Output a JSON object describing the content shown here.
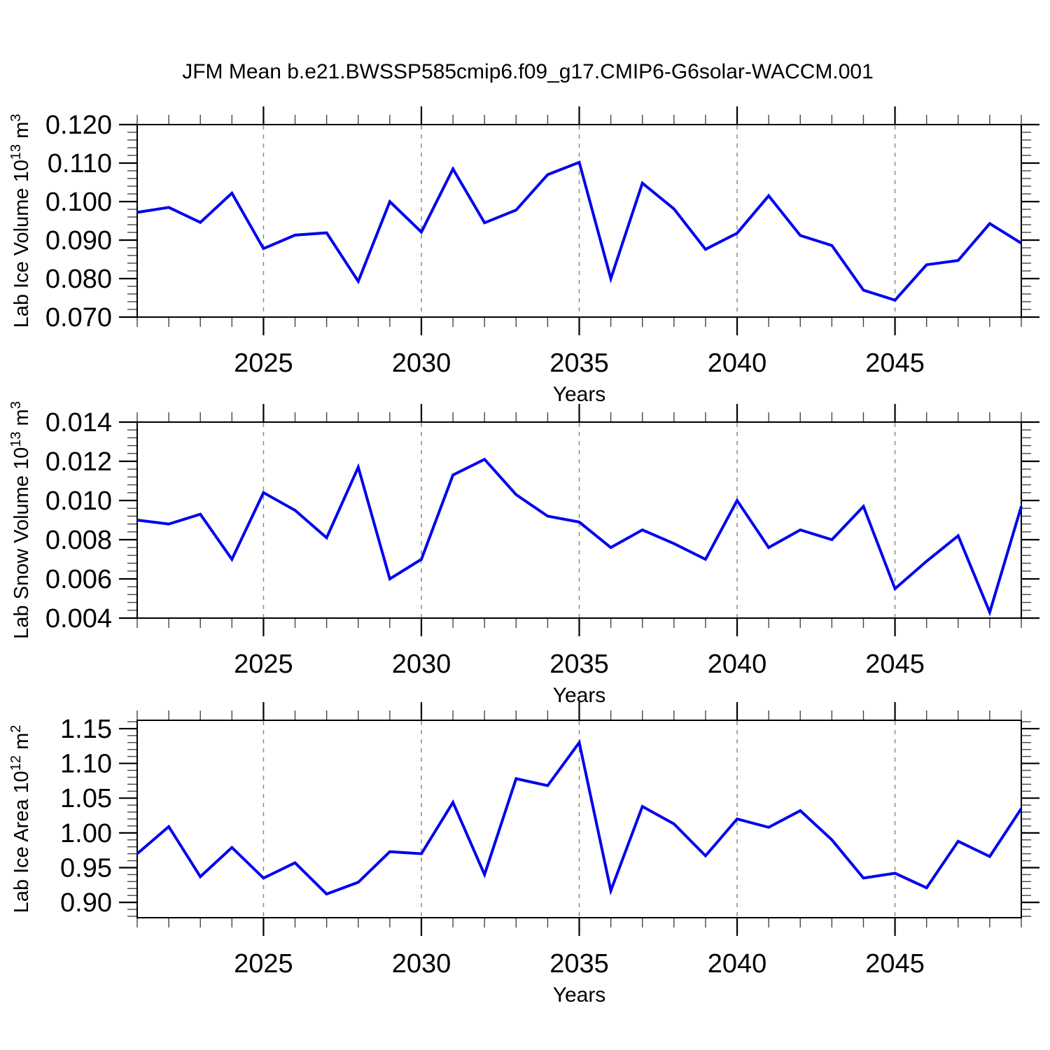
{
  "title": "JFM Mean b.e21.BWSSP585cmip6.f09_g17.CMIP6-G6solar-WACCM.001",
  "colors": {
    "line": "#0000EE",
    "grid": "#8C8C8C",
    "axis": "#000000",
    "minor_tick": "#444444",
    "text": "#000000"
  },
  "chart_data": [
    {
      "type": "line",
      "ylabel": "Lab Ice Volume 10^13 m^3",
      "ylabel_parts": {
        "text": "Lab Ice Volume 10",
        "exp": "13",
        "unit": " m",
        "unit_exp": "3"
      },
      "xlabel": "Years",
      "xlim": [
        2021,
        2049
      ],
      "xticks_major": [
        2025,
        2030,
        2035,
        2040,
        2045
      ],
      "xtick_minor_step": 1,
      "ylim": [
        0.07,
        0.12
      ],
      "yticks_major": [
        0.07,
        0.08,
        0.09,
        0.1,
        0.11,
        0.12
      ],
      "ytick_labels": [
        "0.070",
        "0.080",
        "0.090",
        "0.100",
        "0.110",
        "0.120"
      ],
      "ytick_minor_step": 0.002,
      "grid_x_dashed": true,
      "legend": "none",
      "x": [
        2021,
        2022,
        2023,
        2024,
        2025,
        2026,
        2027,
        2028,
        2029,
        2030,
        2031,
        2032,
        2033,
        2034,
        2035,
        2036,
        2037,
        2038,
        2039,
        2040,
        2041,
        2042,
        2043,
        2044,
        2045,
        2046,
        2047,
        2048,
        2049
      ],
      "values": [
        0.0972,
        0.0985,
        0.0946,
        0.1022,
        0.0878,
        0.0913,
        0.0919,
        0.0793,
        0.1,
        0.0921,
        0.1085,
        0.0945,
        0.0978,
        0.107,
        0.1102,
        0.08,
        0.1048,
        0.0981,
        0.0876,
        0.0918,
        0.1015,
        0.0912,
        0.0886,
        0.077,
        0.0744,
        0.0836,
        0.0847,
        0.0943,
        0.0892
      ]
    },
    {
      "type": "line",
      "ylabel": "Lab Snow Volume 10^13 m^3",
      "ylabel_parts": {
        "text": "Lab Snow Volume 10",
        "exp": "13",
        "unit": " m",
        "unit_exp": "3"
      },
      "xlabel": "Years",
      "xlim": [
        2021,
        2049
      ],
      "xticks_major": [
        2025,
        2030,
        2035,
        2040,
        2045
      ],
      "xtick_minor_step": 1,
      "ylim": [
        0.004,
        0.014
      ],
      "yticks_major": [
        0.004,
        0.006,
        0.008,
        0.01,
        0.012,
        0.014
      ],
      "ytick_labels": [
        "0.004",
        "0.006",
        "0.008",
        "0.010",
        "0.012",
        "0.014"
      ],
      "ytick_minor_step": 0.0004,
      "grid_x_dashed": true,
      "legend": "none",
      "x": [
        2021,
        2022,
        2023,
        2024,
        2025,
        2026,
        2027,
        2028,
        2029,
        2030,
        2031,
        2032,
        2033,
        2034,
        2035,
        2036,
        2037,
        2038,
        2039,
        2040,
        2041,
        2042,
        2043,
        2044,
        2045,
        2046,
        2047,
        2048,
        2049
      ],
      "values": [
        0.009,
        0.0088,
        0.0093,
        0.007,
        0.0104,
        0.0095,
        0.0081,
        0.0117,
        0.006,
        0.007,
        0.0113,
        0.0121,
        0.0103,
        0.0092,
        0.0089,
        0.0076,
        0.0085,
        0.0078,
        0.007,
        0.01,
        0.0076,
        0.0085,
        0.008,
        0.0097,
        0.0055,
        0.0069,
        0.0082,
        0.0043,
        0.0097
      ]
    },
    {
      "type": "line",
      "ylabel": "Lab Ice Area 10^12 m^2",
      "ylabel_parts": {
        "text": "Lab Ice Area 10",
        "exp": "12",
        "unit": " m",
        "unit_exp": "2"
      },
      "xlabel": "Years",
      "xlim": [
        2021,
        2049
      ],
      "xticks_major": [
        2025,
        2030,
        2035,
        2040,
        2045
      ],
      "xtick_minor_step": 1,
      "ylim": [
        0.878,
        1.162
      ],
      "yticks_major": [
        0.9,
        0.95,
        1.0,
        1.05,
        1.1,
        1.15
      ],
      "ytick_labels": [
        "0.90",
        "0.95",
        "1.00",
        "1.05",
        "1.10",
        "1.15"
      ],
      "ytick_minor_step": 0.01,
      "grid_x_dashed": true,
      "legend": "none",
      "x": [
        2021,
        2022,
        2023,
        2024,
        2025,
        2026,
        2027,
        2028,
        2029,
        2030,
        2031,
        2032,
        2033,
        2034,
        2035,
        2036,
        2037,
        2038,
        2039,
        2040,
        2041,
        2042,
        2043,
        2044,
        2045,
        2046,
        2047,
        2048,
        2049
      ],
      "values": [
        0.97,
        1.009,
        0.937,
        0.979,
        0.935,
        0.957,
        0.912,
        0.929,
        0.973,
        0.97,
        1.044,
        0.94,
        1.078,
        1.068,
        1.13,
        0.917,
        1.038,
        1.013,
        0.967,
        1.02,
        1.008,
        1.032,
        0.99,
        0.935,
        0.942,
        0.921,
        0.988,
        0.966,
        1.035
      ]
    }
  ]
}
